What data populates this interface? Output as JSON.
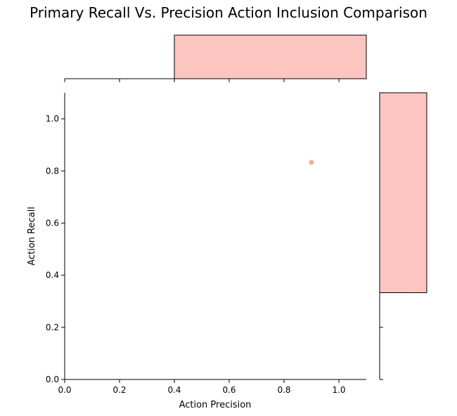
{
  "chart_data": {
    "type": "scatter",
    "title": "Primary Recall Vs. Precision Action Inclusion Comparison",
    "xlabel": "Action Precision",
    "ylabel": "Action Recall",
    "xlim": [
      0.0,
      1.1
    ],
    "ylim": [
      0.0,
      1.1
    ],
    "xticks": [
      0.0,
      0.2,
      0.4,
      0.6,
      0.8,
      1.0
    ],
    "yticks": [
      0.0,
      0.2,
      0.4,
      0.6,
      0.8,
      1.0
    ],
    "tick_labels_x": [
      "0.0",
      "0.2",
      "0.4",
      "0.6",
      "0.8",
      "1.0"
    ],
    "tick_labels_y": [
      "0.0",
      "0.2",
      "0.4",
      "0.6",
      "0.8",
      "1.0"
    ],
    "points": [
      {
        "x": 0.9,
        "y": 0.833
      }
    ],
    "marginal_x_hist": {
      "bin_start": 0.4,
      "bin_end": 1.1
    },
    "marginal_y_hist": {
      "bin_start": 0.333,
      "bin_end": 1.1
    },
    "grid": false,
    "colors": {
      "point": "#f4aaa1",
      "bar_fill": "#fcc5c0",
      "bar_edge": "#000000"
    }
  }
}
